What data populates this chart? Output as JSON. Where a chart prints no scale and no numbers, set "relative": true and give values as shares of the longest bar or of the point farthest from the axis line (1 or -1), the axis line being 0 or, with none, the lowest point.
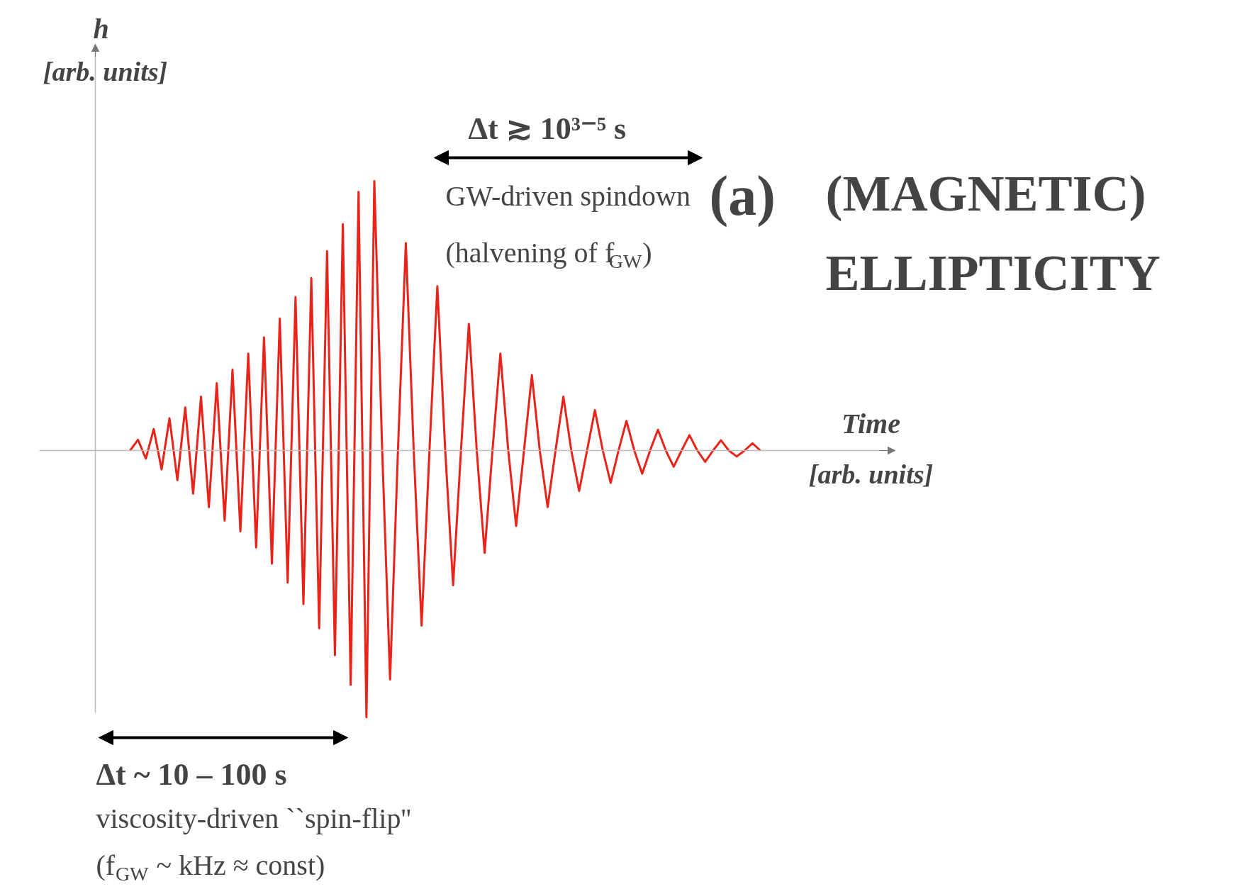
{
  "chart_data": {
    "type": "line",
    "relative": true,
    "title": "(MAGNETIC) ELLIPTICITY",
    "xlabel": "Time [arb. units]",
    "ylabel": "h [arb. units]",
    "annotations": [
      "(a)",
      "Δt ≳ 10³⁻⁵ s",
      "GW-driven spindown",
      "(halvening of f$_{GW}$)",
      "Δt ~ 10 – 100 s",
      "viscosity-driven ``spin-flip''",
      "(f$_{GW}$ ~ kHz ≈ const)"
    ],
    "categories": [
      null,
      null,
      null,
      null,
      null,
      null,
      null,
      null,
      null,
      null,
      null,
      null,
      null,
      null,
      null,
      null,
      null,
      null,
      null,
      null,
      null,
      null,
      null,
      null,
      null,
      null,
      null,
      null,
      null,
      null,
      null,
      null,
      null,
      null,
      null,
      null,
      null,
      null,
      null,
      null,
      null,
      null,
      null,
      null,
      null,
      null,
      null,
      null,
      null,
      null,
      null,
      null,
      null,
      null,
      null,
      null,
      null,
      null,
      null,
      null,
      null,
      null,
      null,
      null,
      null,
      null,
      null,
      null,
      null,
      null,
      null,
      null,
      null,
      null,
      null,
      null,
      null,
      null,
      null,
      null,
      null
    ],
    "series": [
      {
        "color": "#e8231a",
        "values": [
          0,
          0.04,
          -0.03,
          0.08,
          -0.07,
          0.12,
          -0.11,
          0.16,
          -0.16,
          0.2,
          -0.21,
          0.25,
          -0.26,
          0.3,
          -0.3,
          0.36,
          -0.36,
          0.42,
          -0.42,
          0.49,
          -0.49,
          0.57,
          -0.57,
          0.64,
          -0.66,
          0.74,
          -0.76,
          0.84,
          -0.87,
          0.96,
          -0.99,
          1,
          0,
          -0.85,
          0,
          0.77,
          0,
          -0.65,
          0,
          0.61,
          0,
          -0.5,
          0,
          0.47,
          0,
          -0.38,
          0,
          0.36,
          0,
          -0.28,
          0,
          0.28,
          0,
          -0.21,
          0,
          0.2,
          0,
          -0.15,
          0,
          0.15,
          0,
          -0.12,
          0,
          0.11,
          0,
          -0.086,
          0,
          0.077,
          0,
          -0.06,
          0,
          0.057,
          0,
          -0.042,
          0,
          0.038,
          0,
          -0.022,
          0,
          0.027,
          0
        ]
      }
    ],
    "line_style": "solid",
    "marker": "none"
  }
}
